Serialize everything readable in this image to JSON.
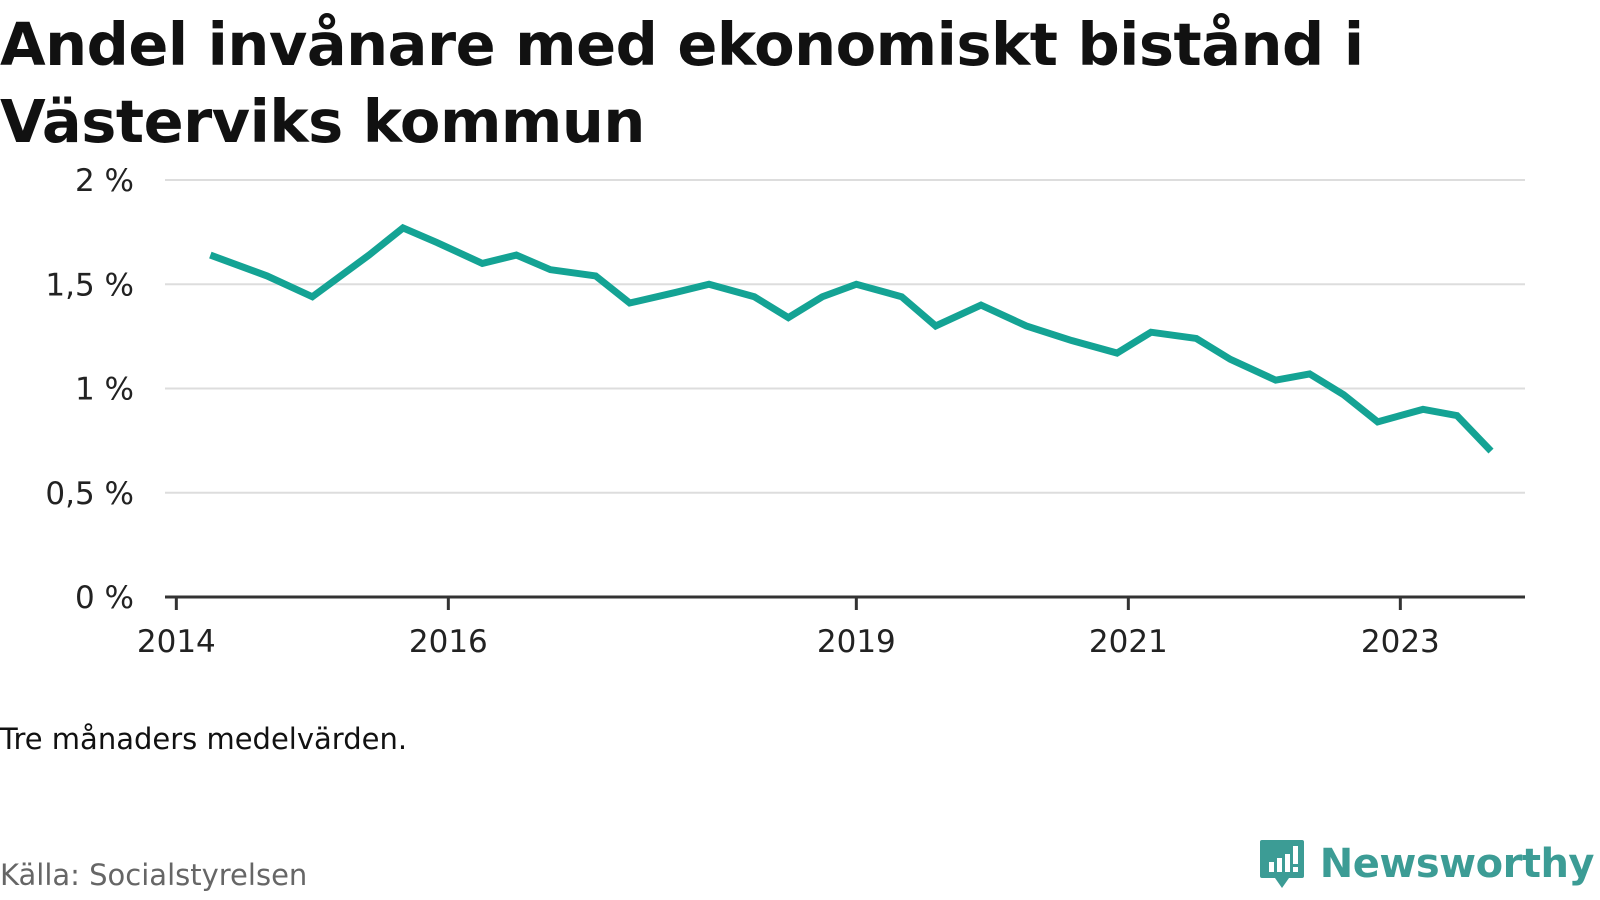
{
  "title": "Andel invånare med ekonomiskt bistånd i Västerviks kommun",
  "note": "Tre månaders medelvärden.",
  "source": "Källa: Socialstyrelsen",
  "brand": {
    "name": "Newsworthy",
    "icon": "newsworthy-logo-icon",
    "color": "#3c9c95"
  },
  "chart_data": {
    "type": "line",
    "title": "Andel invånare med ekonomiskt bistånd i Västerviks kommun",
    "xlabel": "",
    "ylabel": "",
    "x_ticks": [
      "2014",
      "2016",
      "2019",
      "2021",
      "2023"
    ],
    "y_ticks": [
      "0 %",
      "0,5 %",
      "1 %",
      "1,5 %",
      "2 %"
    ],
    "ylim": [
      0,
      2
    ],
    "xlim": [
      "2014-01",
      "2023-12"
    ],
    "grid": true,
    "legend": "none",
    "color": "#14a394",
    "series": [
      {
        "x": [
          "2014-05",
          "2014-10",
          "2015-02",
          "2015-07",
          "2015-10",
          "2016-01",
          "2016-05",
          "2016-08",
          "2016-11",
          "2017-03",
          "2017-06",
          "2017-10",
          "2018-01",
          "2018-05",
          "2018-08",
          "2018-11",
          "2019-02",
          "2019-06",
          "2019-09",
          "2020-01",
          "2020-05",
          "2020-09",
          "2021-01",
          "2021-04",
          "2021-08",
          "2021-11",
          "2022-03",
          "2022-06",
          "2022-09",
          "2022-12",
          "2023-04",
          "2023-07",
          "2023-10"
        ],
        "values": [
          1.64,
          1.54,
          1.44,
          1.64,
          1.77,
          1.7,
          1.6,
          1.64,
          1.57,
          1.54,
          1.41,
          1.46,
          1.5,
          1.44,
          1.34,
          1.44,
          1.5,
          1.44,
          1.3,
          1.4,
          1.3,
          1.23,
          1.17,
          1.27,
          1.24,
          1.14,
          1.04,
          1.07,
          0.97,
          0.84,
          0.9,
          0.87,
          0.7
        ]
      }
    ]
  }
}
